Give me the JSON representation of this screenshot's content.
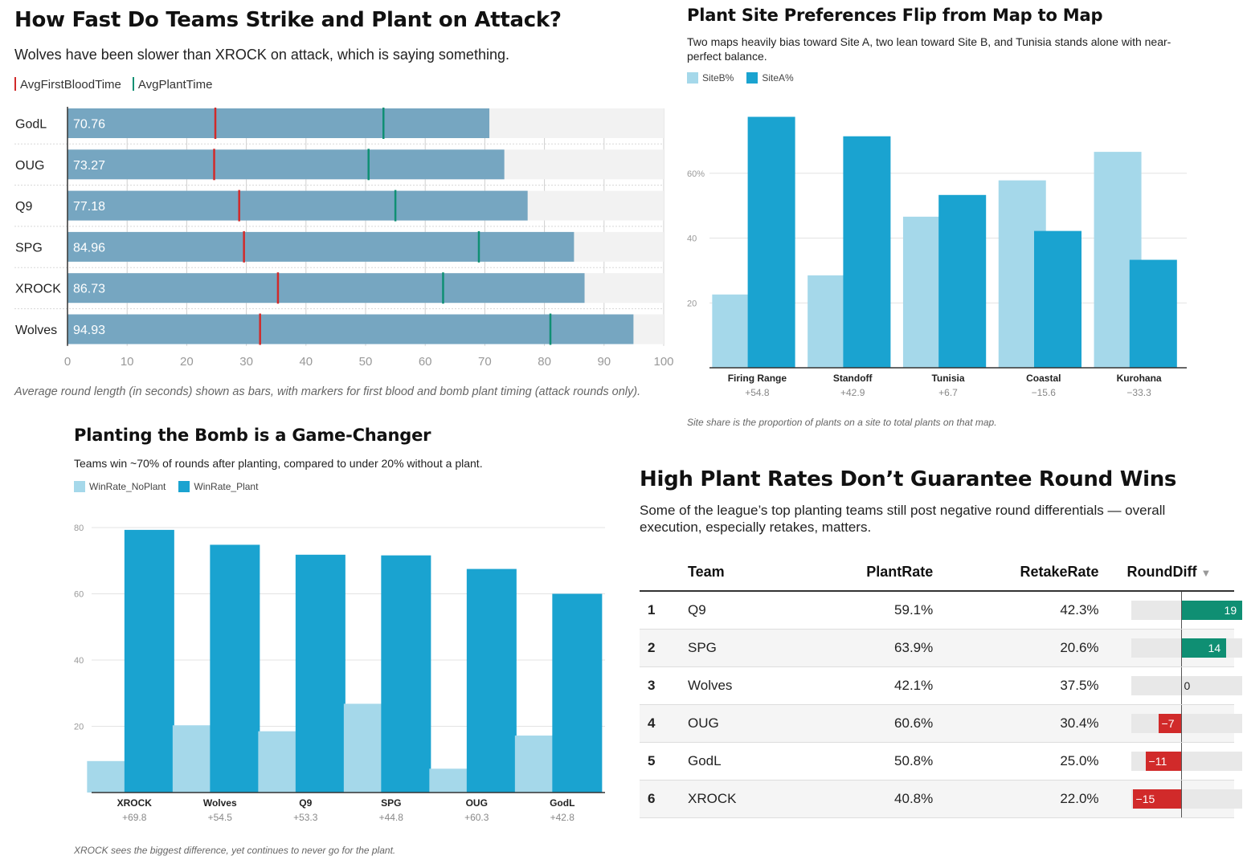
{
  "panel1": {
    "title": "How Fast Do Teams Strike and Plant on Attack?",
    "subtitle": "Wolves have been slower than XROCK on attack, which is saying something.",
    "legend": [
      {
        "label": "AvgFirstBloodTime",
        "color": "#d12a2a"
      },
      {
        "label": "AvgPlantTime",
        "color": "#0f8f73"
      }
    ],
    "caption": "Average round length (in seconds) shown as bars, with markers for first blood and bomb plant timing (attack rounds only).",
    "chart_data": {
      "type": "bar",
      "orientation": "horizontal",
      "categories": [
        "GodL",
        "OUG",
        "Q9",
        "SPG",
        "XROCK",
        "Wolves"
      ],
      "values": [
        70.76,
        73.27,
        77.18,
        84.96,
        86.73,
        94.93
      ],
      "value_labels": [
        "70.76",
        "73.27",
        "77.18",
        "84.96",
        "86.73",
        "94.93"
      ],
      "markers": {
        "AvgFirstBloodTime": [
          24.8,
          24.6,
          28.8,
          29.6,
          35.3,
          32.3
        ],
        "AvgPlantTime": [
          53.0,
          50.5,
          55.0,
          69.0,
          63.0,
          81.0
        ]
      },
      "xlim": [
        0,
        100
      ],
      "xticks": [
        "0",
        "10",
        "20",
        "30",
        "40",
        "50",
        "60",
        "70",
        "80",
        "90",
        "100"
      ],
      "bar_color": "#76a6c1",
      "track_color": "#f2f2f2",
      "grid": true
    }
  },
  "panel2": {
    "title": "Plant Site Preferences Flip from Map to Map",
    "subtitle": "Two maps heavily bias toward Site A, two lean toward Site B, and Tunisia stands alone with near-perfect balance.",
    "legend": [
      {
        "label": "SiteB%",
        "color": "#a5d8ea"
      },
      {
        "label": "SiteA%",
        "color": "#1aa3d0"
      }
    ],
    "caption": "Site share is the proportion of plants on a site to total plants on that map.",
    "chart_data": {
      "type": "bar",
      "categories": [
        "Firing Range",
        "Standoff",
        "Tunisia",
        "Coastal",
        "Kurohana"
      ],
      "sublabels": [
        "+54.8",
        "+42.9",
        "+6.7",
        "−15.6",
        "−33.3"
      ],
      "series": [
        {
          "name": "SiteB%",
          "values": [
            22.6,
            28.5,
            46.6,
            57.8,
            66.6
          ]
        },
        {
          "name": "SiteA%",
          "values": [
            77.4,
            71.4,
            53.3,
            42.2,
            33.3
          ]
        }
      ],
      "ylim": [
        0,
        80
      ],
      "yticks": [
        "20",
        "40",
        "60%"
      ],
      "grid": true
    }
  },
  "panel3": {
    "title": "Planting the Bomb is a Game-Changer",
    "subtitle": "Teams win ~70% of rounds after planting, compared to under 20% without a plant.",
    "legend": [
      {
        "label": "WinRate_NoPlant",
        "color": "#a5d8ea"
      },
      {
        "label": "WinRate_Plant",
        "color": "#1aa3d0"
      }
    ],
    "caption": "XROCK sees the biggest difference, yet continues to never go for the plant.",
    "chart_data": {
      "type": "bar",
      "categories": [
        "XROCK",
        "Wolves",
        "Q9",
        "SPG",
        "OUG",
        "GodL"
      ],
      "sublabels": [
        "+69.8",
        "+54.5",
        "+53.3",
        "+44.8",
        "+60.3",
        "+42.8"
      ],
      "series": [
        {
          "name": "WinRate_NoPlant",
          "values": [
            9.5,
            20.3,
            18.5,
            26.8,
            7.2,
            17.2
          ]
        },
        {
          "name": "WinRate_Plant",
          "values": [
            79.3,
            74.8,
            71.8,
            71.6,
            67.5,
            60.0
          ]
        }
      ],
      "ylim": [
        0,
        80
      ],
      "yticks": [
        "20",
        "40",
        "60",
        "80"
      ],
      "grid": true
    }
  },
  "panel4": {
    "title": "High Plant Rates Don’t Guarantee Round Wins",
    "subtitle": "Some of the league’s top planting teams still post negative round differentials — overall execution, especially retakes, matters.",
    "headers": {
      "team": "Team",
      "plant": "PlantRate",
      "retake": "RetakeRate",
      "diff": "RoundDiff",
      "sort_icon": "▼"
    },
    "pos_color": "#0f8f73",
    "neg_color": "#d12a2a",
    "diff_range": [
      -15,
      19
    ],
    "rows": [
      {
        "rank": "1",
        "team": "Q9",
        "plant": "59.1%",
        "retake": "42.3%",
        "diff": 19,
        "diff_label": "19"
      },
      {
        "rank": "2",
        "team": "SPG",
        "plant": "63.9%",
        "retake": "20.6%",
        "diff": 14,
        "diff_label": "14"
      },
      {
        "rank": "3",
        "team": "Wolves",
        "plant": "42.1%",
        "retake": "37.5%",
        "diff": 0,
        "diff_label": "0"
      },
      {
        "rank": "4",
        "team": "OUG",
        "plant": "60.6%",
        "retake": "30.4%",
        "diff": -7,
        "diff_label": "−7"
      },
      {
        "rank": "5",
        "team": "GodL",
        "plant": "50.8%",
        "retake": "25.0%",
        "diff": -11,
        "diff_label": "−11"
      },
      {
        "rank": "6",
        "team": "XROCK",
        "plant": "40.8%",
        "retake": "22.0%",
        "diff": -15,
        "diff_label": "−15"
      }
    ]
  }
}
